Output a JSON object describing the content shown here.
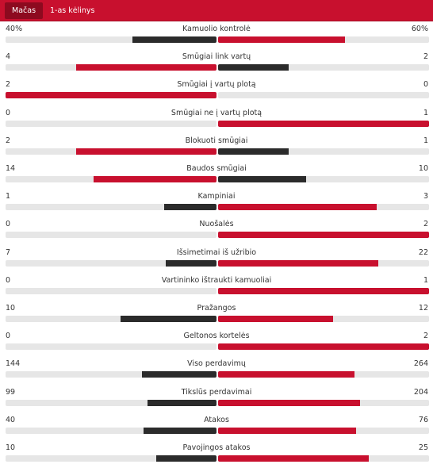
{
  "tabs": [
    {
      "label": "Mačas",
      "active": true
    },
    {
      "label": "1-as kėlinys",
      "active": false
    }
  ],
  "colors": {
    "header": "#c8102e",
    "red": "#c8102e",
    "dark": "#2b2b2b",
    "track": "#e6e6e6"
  },
  "stats": [
    {
      "name": "Kamuolio kontrolė",
      "home": "40%",
      "away": "60%",
      "hv": 40,
      "av": 60,
      "home_color": "dark",
      "away_color": "red"
    },
    {
      "name": "Smūgiai link vartų",
      "home": "4",
      "away": "2",
      "hv": 4,
      "av": 2,
      "home_color": "red",
      "away_color": "dark"
    },
    {
      "name": "Smūgiai į vartų plotą",
      "home": "2",
      "away": "0",
      "hv": 2,
      "av": 0,
      "home_color": "red",
      "away_color": "dark"
    },
    {
      "name": "Smūgiai ne į vartų plotą",
      "home": "0",
      "away": "1",
      "hv": 0,
      "av": 1,
      "home_color": "dark",
      "away_color": "red"
    },
    {
      "name": "Blokuoti smūgiai",
      "home": "2",
      "away": "1",
      "hv": 2,
      "av": 1,
      "home_color": "red",
      "away_color": "dark"
    },
    {
      "name": "Baudos smūgiai",
      "home": "14",
      "away": "10",
      "hv": 14,
      "av": 10,
      "home_color": "red",
      "away_color": "dark"
    },
    {
      "name": "Kampiniai",
      "home": "1",
      "away": "3",
      "hv": 1,
      "av": 3,
      "home_color": "dark",
      "away_color": "red"
    },
    {
      "name": "Nuošalės",
      "home": "0",
      "away": "2",
      "hv": 0,
      "av": 2,
      "home_color": "dark",
      "away_color": "red"
    },
    {
      "name": "Išsimetimai iš užribio",
      "home": "7",
      "away": "22",
      "hv": 7,
      "av": 22,
      "home_color": "dark",
      "away_color": "red"
    },
    {
      "name": "Vartininko ištraukti kamuoliai",
      "home": "0",
      "away": "1",
      "hv": 0,
      "av": 1,
      "home_color": "dark",
      "away_color": "red"
    },
    {
      "name": "Pražangos",
      "home": "10",
      "away": "12",
      "hv": 10,
      "av": 12,
      "home_color": "dark",
      "away_color": "red"
    },
    {
      "name": "Geltonos kortelės",
      "home": "0",
      "away": "2",
      "hv": 0,
      "av": 2,
      "home_color": "dark",
      "away_color": "red"
    },
    {
      "name": "Viso perdavimų",
      "home": "144",
      "away": "264",
      "hv": 144,
      "av": 264,
      "home_color": "dark",
      "away_color": "red"
    },
    {
      "name": "Tikslūs perdavimai",
      "home": "99",
      "away": "204",
      "hv": 99,
      "av": 204,
      "home_color": "dark",
      "away_color": "red"
    },
    {
      "name": "Atakos",
      "home": "40",
      "away": "76",
      "hv": 40,
      "av": 76,
      "home_color": "dark",
      "away_color": "red"
    },
    {
      "name": "Pavojingos atakos",
      "home": "10",
      "away": "25",
      "hv": 10,
      "av": 25,
      "home_color": "dark",
      "away_color": "red"
    }
  ]
}
